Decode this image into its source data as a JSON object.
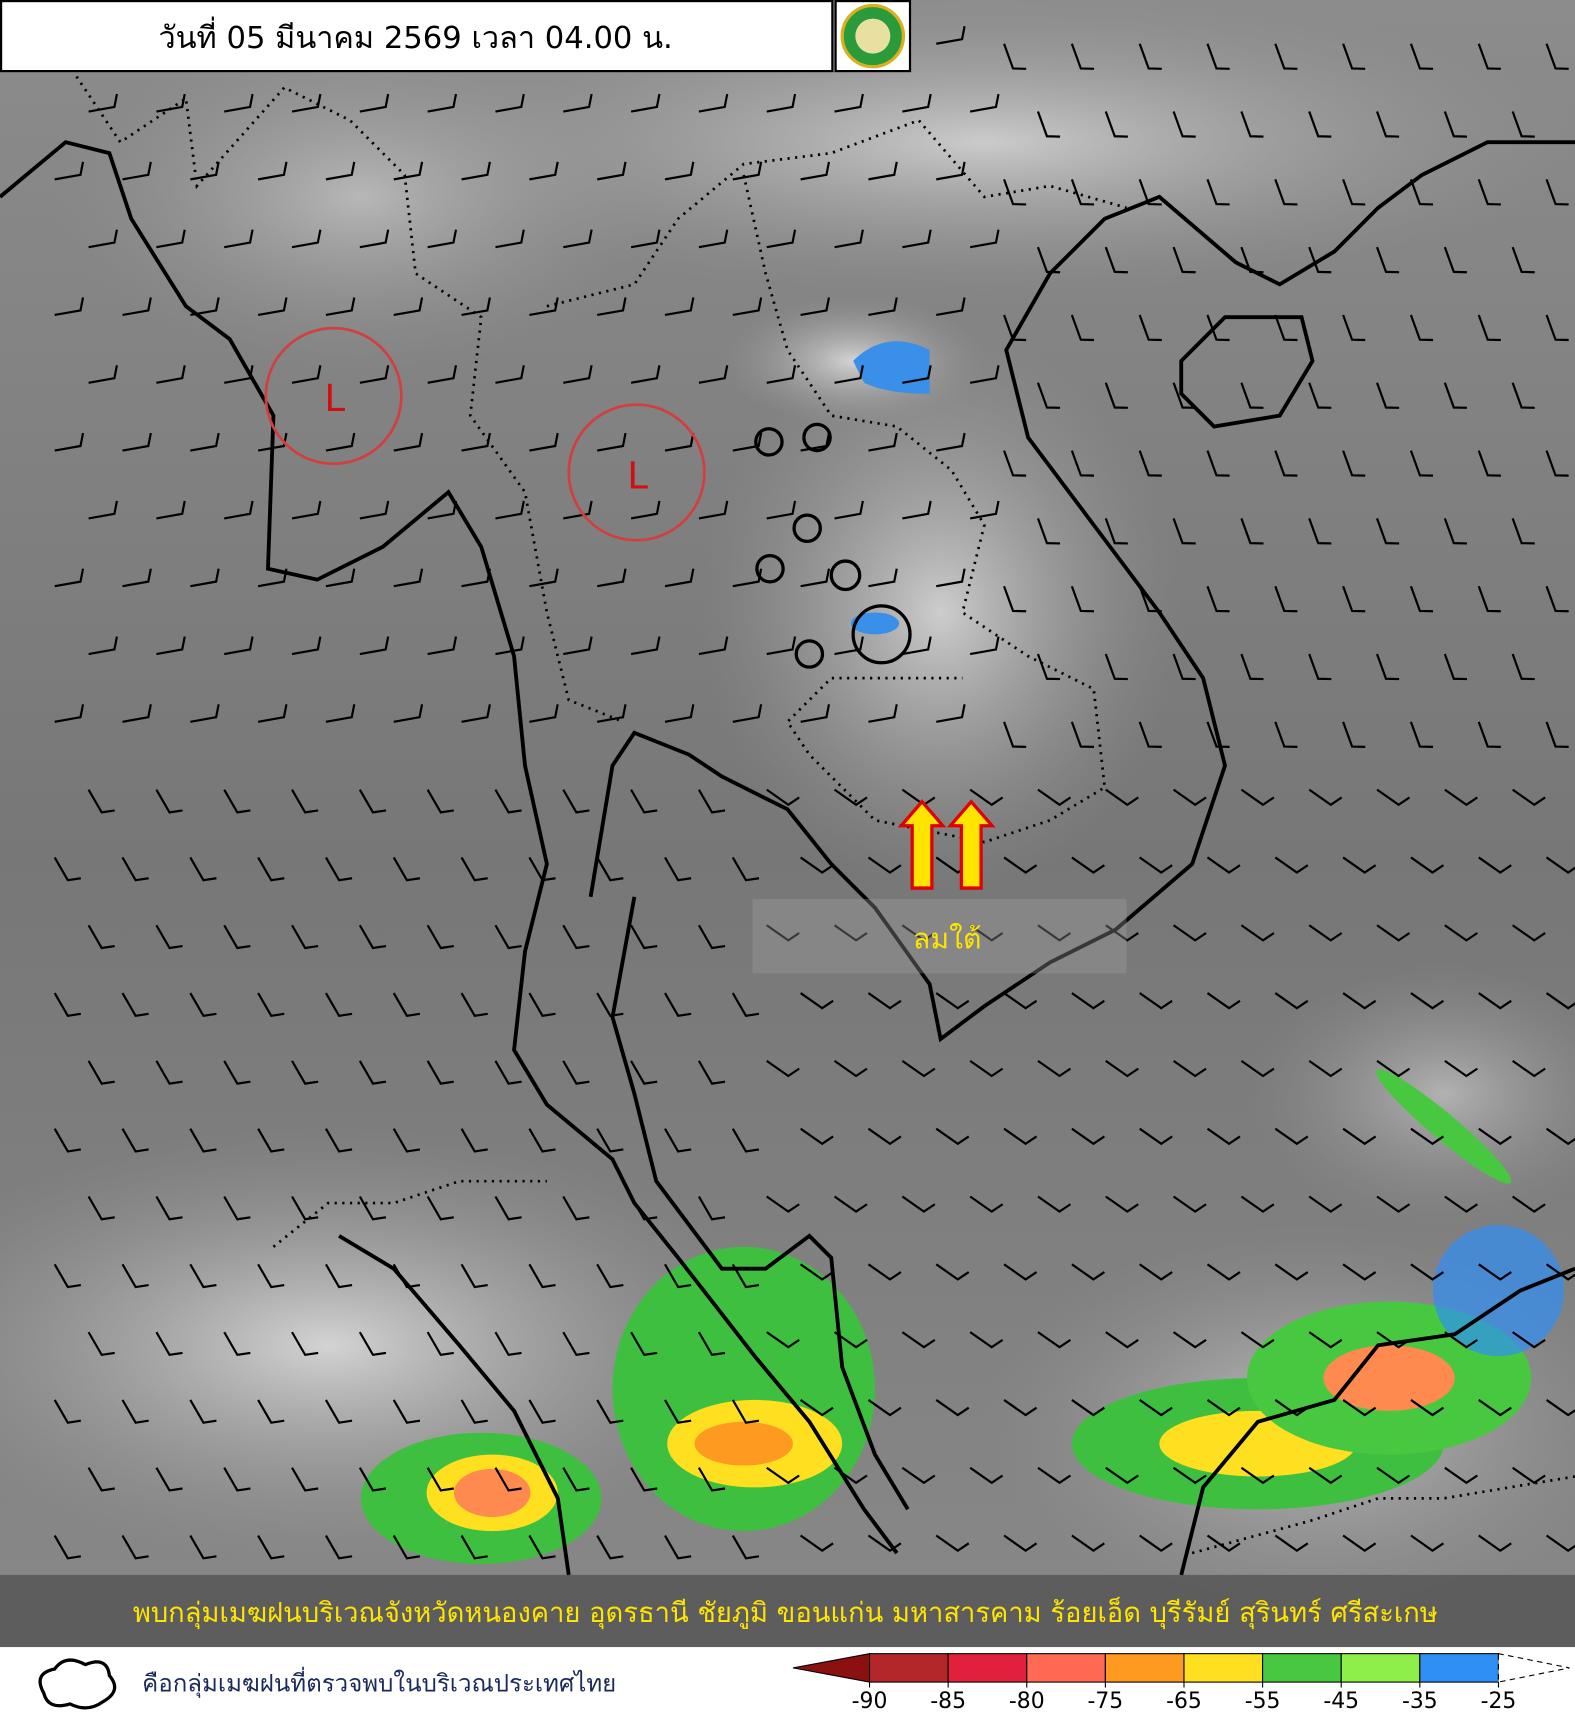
{
  "header": {
    "title": "วันที่ 05 มีนาคม 2569 เวลา 04.00 น."
  },
  "map": {
    "lows": [
      {
        "label": "L"
      },
      {
        "label": "L"
      }
    ],
    "wind_label": "ลมใต้",
    "caption": "พบกลุ่มเมฆฝนบริเวณจังหวัดหนองคาย อุดรธานี ชัยภูมิ ขอนแก่น มหาสารคาม ร้อยเอ็ด บุรีรัมย์ สุรินทร์ ศรีสะเกษ"
  },
  "legend": {
    "cloud_text": "คือกลุ่มเมฆฝนที่ตรวจพบในบริเวณประเทศไทย",
    "ticks": [
      -90,
      -85,
      -80,
      -75,
      -65,
      -55,
      -45,
      -35,
      -25
    ],
    "low_color": "#8b1010",
    "colors": [
      "#b3262a",
      "#e0203c",
      "#ff6a55",
      "#ff9a20",
      "#ffe020",
      "#48c840",
      "#8fef4a",
      "#2f8ff5"
    ]
  }
}
